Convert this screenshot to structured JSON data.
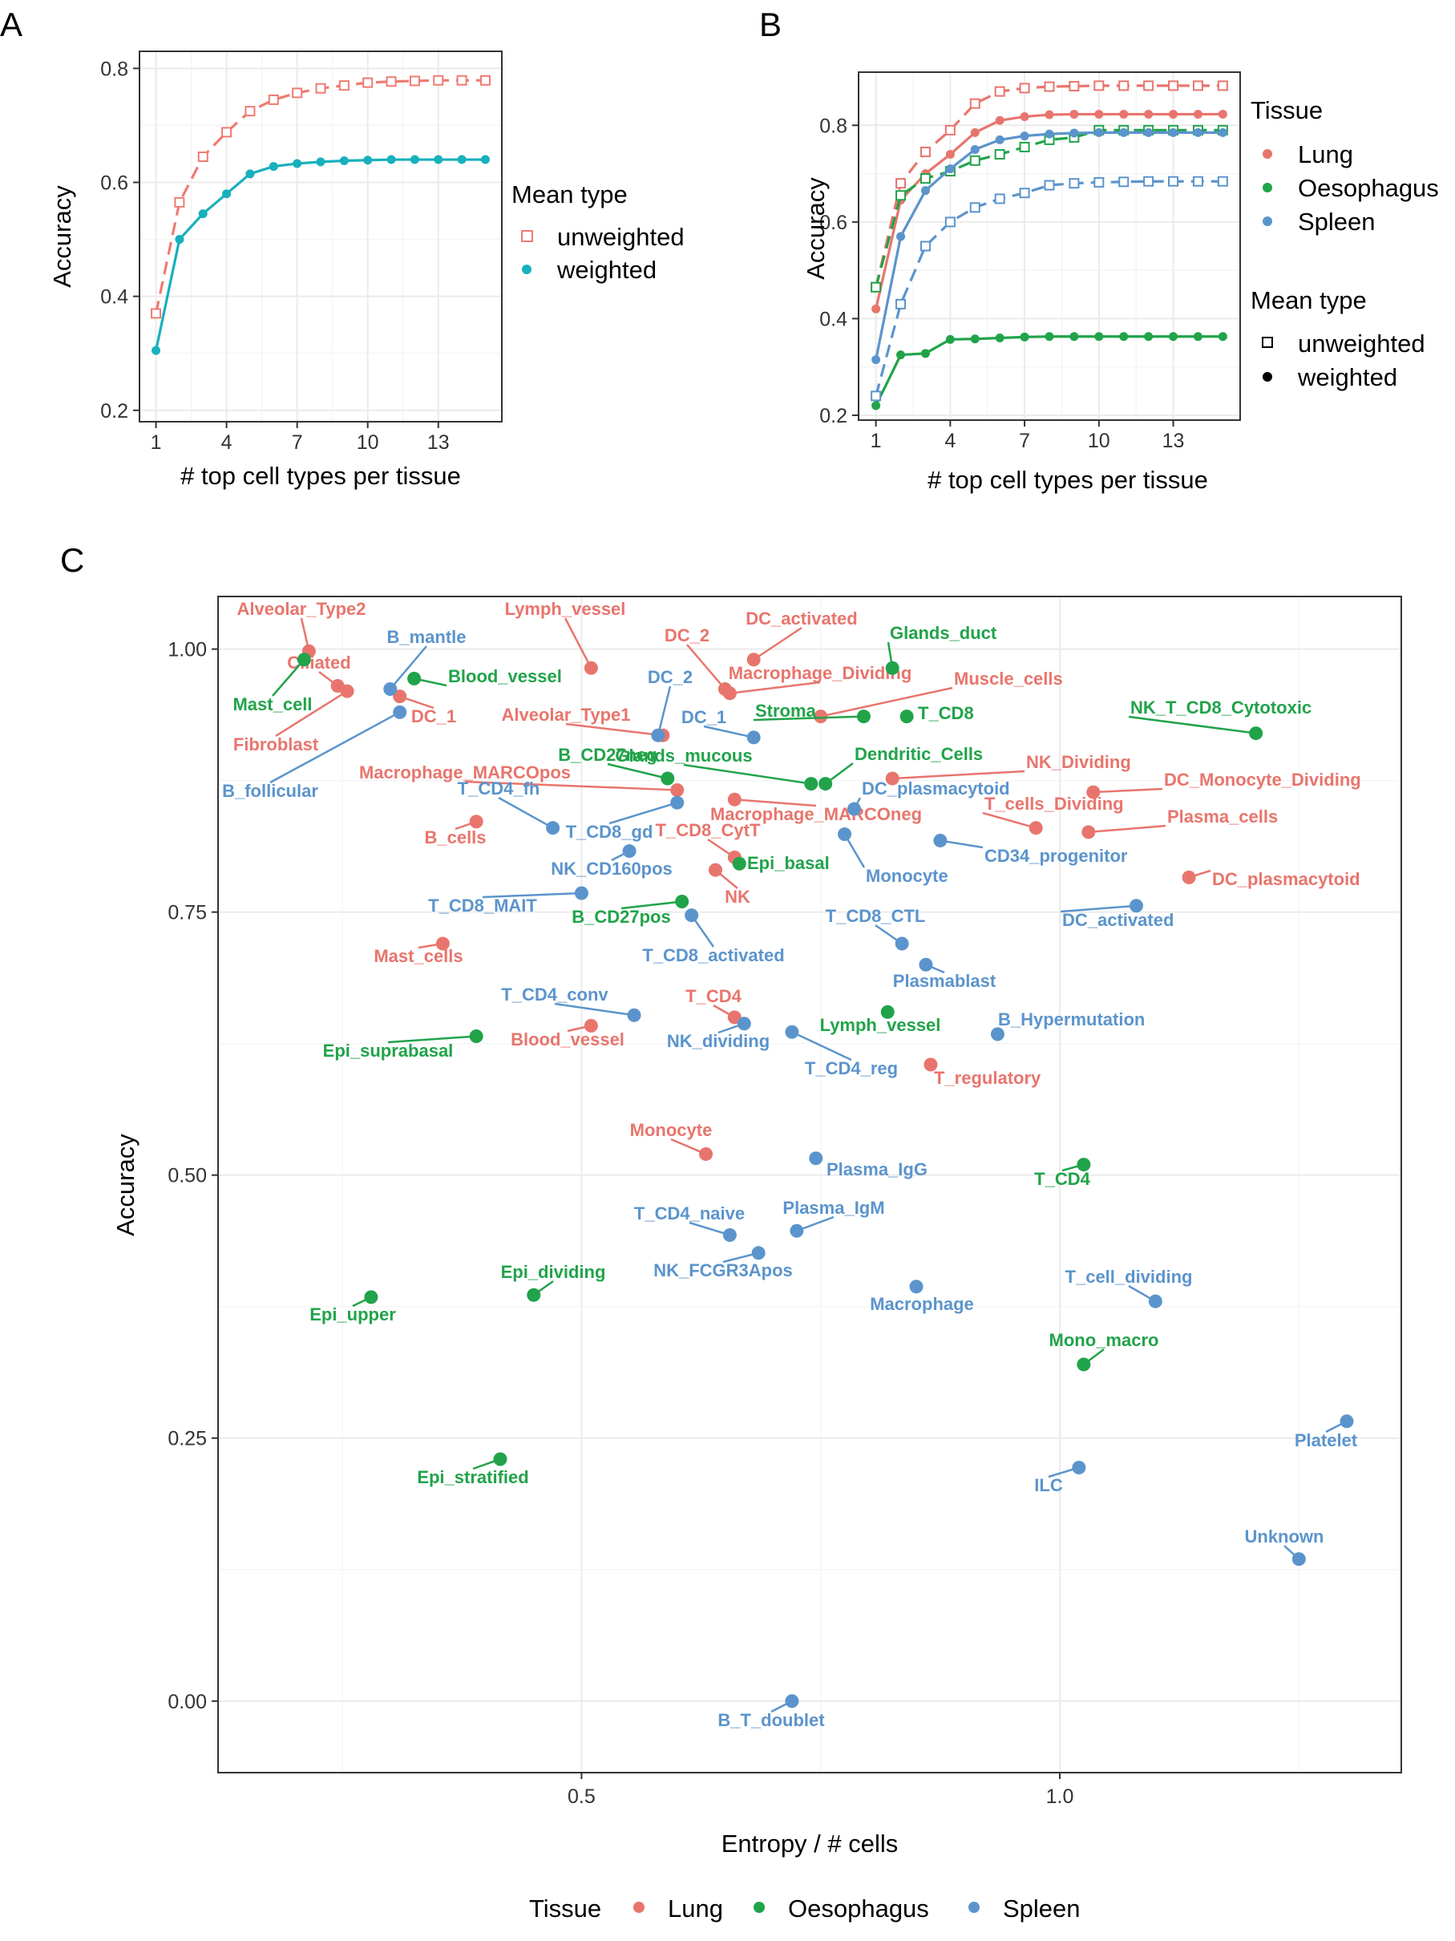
{
  "panels": [
    "A",
    "B",
    "C"
  ],
  "colors": {
    "Lung": "#e8756d",
    "Oesophagus": "#21a34a",
    "Spleen": "#5b94cc",
    "unweighted_A": "#ef7b72",
    "weighted_A": "#18b0bd"
  },
  "chart_data": [
    {
      "panel": "A",
      "type": "line",
      "xlabel": "# top cell types per tissue",
      "ylabel": "Accuracy",
      "xticks": [
        1,
        4,
        7,
        10,
        13
      ],
      "yticks": [
        "0.2",
        "0.4",
        "0.6",
        "0.8"
      ],
      "xlim": [
        0.3,
        15.7
      ],
      "ylim": [
        0.18,
        0.83
      ],
      "x": [
        1,
        2,
        3,
        4,
        5,
        6,
        7,
        8,
        9,
        10,
        11,
        12,
        13,
        14,
        15
      ],
      "legend_title": "Mean type",
      "legend_position": "right",
      "series": [
        {
          "name": "unweighted",
          "marker": "square-open",
          "dash": true,
          "values": [
            0.37,
            0.565,
            0.645,
            0.688,
            0.725,
            0.745,
            0.757,
            0.765,
            0.77,
            0.775,
            0.777,
            0.778,
            0.779,
            0.779,
            0.779
          ]
        },
        {
          "name": "weighted",
          "marker": "circle",
          "dash": false,
          "values": [
            0.305,
            0.5,
            0.545,
            0.58,
            0.615,
            0.628,
            0.633,
            0.636,
            0.638,
            0.639,
            0.64,
            0.64,
            0.64,
            0.64,
            0.64
          ]
        }
      ]
    },
    {
      "panel": "B",
      "type": "line",
      "xlabel": "# top cell types per tissue",
      "ylabel": "Accuracy",
      "xticks": [
        1,
        4,
        7,
        10,
        13
      ],
      "yticks": [
        "0.2",
        "0.4",
        "0.6",
        "0.8"
      ],
      "xlim": [
        0.3,
        15.7
      ],
      "ylim": [
        0.19,
        0.91
      ],
      "x": [
        1,
        2,
        3,
        4,
        5,
        6,
        7,
        8,
        9,
        10,
        11,
        12,
        13,
        14,
        15
      ],
      "legend_position": "right",
      "tissue_legend": {
        "title": "Tissue",
        "items": [
          "Lung",
          "Oesophagus",
          "Spleen"
        ]
      },
      "meantype_legend": {
        "title": "Mean type",
        "items": [
          "unweighted",
          "weighted"
        ]
      },
      "series": [
        {
          "tissue": "Lung",
          "type": "unweighted",
          "values": [
            0.465,
            0.68,
            0.745,
            0.79,
            0.845,
            0.87,
            0.877,
            0.88,
            0.881,
            0.882,
            0.882,
            0.882,
            0.882,
            0.882,
            0.882
          ]
        },
        {
          "tissue": "Lung",
          "type": "weighted",
          "values": [
            0.42,
            0.645,
            0.7,
            0.74,
            0.785,
            0.81,
            0.818,
            0.822,
            0.823,
            0.823,
            0.823,
            0.823,
            0.823,
            0.823,
            0.823
          ]
        },
        {
          "tissue": "Oesophagus",
          "type": "unweighted",
          "values": [
            0.465,
            0.655,
            0.69,
            0.705,
            0.727,
            0.74,
            0.755,
            0.77,
            0.775,
            0.79,
            0.79,
            0.79,
            0.79,
            0.79,
            0.79
          ]
        },
        {
          "tissue": "Oesophagus",
          "type": "weighted",
          "values": [
            0.22,
            0.325,
            0.328,
            0.357,
            0.358,
            0.36,
            0.362,
            0.363,
            0.363,
            0.363,
            0.363,
            0.363,
            0.363,
            0.363,
            0.363
          ]
        },
        {
          "tissue": "Spleen",
          "type": "unweighted",
          "values": [
            0.24,
            0.43,
            0.55,
            0.6,
            0.63,
            0.648,
            0.66,
            0.676,
            0.68,
            0.682,
            0.683,
            0.684,
            0.684,
            0.684,
            0.684
          ]
        },
        {
          "tissue": "Spleen",
          "type": "weighted",
          "values": [
            0.315,
            0.57,
            0.665,
            0.71,
            0.75,
            0.77,
            0.778,
            0.782,
            0.784,
            0.785,
            0.785,
            0.785,
            0.785,
            0.785,
            0.785
          ]
        }
      ]
    },
    {
      "panel": "C",
      "type": "scatter",
      "xlabel": "Entropy / # cells",
      "ylabel": "Accuracy",
      "xticks": [
        "0.5",
        "1.0"
      ],
      "yticks": [
        "0.00",
        "0.25",
        "0.50",
        "0.75",
        "1.00"
      ],
      "xlim": [
        0.12,
        1.357
      ],
      "ylim": [
        -0.068,
        1.05
      ],
      "legend": {
        "title": "Tissue",
        "items": [
          "Lung",
          "Oesophagus",
          "Spleen"
        ],
        "position": "bottom"
      },
      "points": [
        {
          "label": "Alveolar_Type2",
          "tissue": "Lung",
          "x": 0.215,
          "y": 0.998
        },
        {
          "label": "Ciliated",
          "tissue": "Lung",
          "x": 0.245,
          "y": 0.965
        },
        {
          "label": "Fibroblast",
          "tissue": "Lung",
          "x": 0.255,
          "y": 0.96
        },
        {
          "label": "DC_1",
          "tissue": "Lung",
          "x": 0.31,
          "y": 0.955
        },
        {
          "label": "Lymph_vessel",
          "tissue": "Lung",
          "x": 0.51,
          "y": 0.982
        },
        {
          "label": "DC_activated",
          "tissue": "Lung",
          "x": 0.68,
          "y": 0.99
        },
        {
          "label": "DC_2",
          "tissue": "Lung",
          "x": 0.65,
          "y": 0.962
        },
        {
          "label": "Macrophage_Dividing",
          "tissue": "Lung",
          "x": 0.655,
          "y": 0.958
        },
        {
          "label": "Muscle_cells",
          "tissue": "Lung",
          "x": 0.75,
          "y": 0.936
        },
        {
          "label": "Alveolar_Type1",
          "tissue": "Lung",
          "x": 0.585,
          "y": 0.918
        },
        {
          "label": "NK_Dividing",
          "tissue": "Lung",
          "x": 0.825,
          "y": 0.877
        },
        {
          "label": "Macrophage_MARCOpos",
          "tissue": "Lung",
          "x": 0.6,
          "y": 0.866
        },
        {
          "label": "DC_Monocyte_Dividing",
          "tissue": "Lung",
          "x": 1.035,
          "y": 0.864
        },
        {
          "label": "Macrophage_MARCOneg",
          "tissue": "Lung",
          "x": 0.66,
          "y": 0.857
        },
        {
          "label": "T_cells_Dividing",
          "tissue": "Lung",
          "x": 0.975,
          "y": 0.83
        },
        {
          "label": "Plasma_cells",
          "tissue": "Lung",
          "x": 1.03,
          "y": 0.826
        },
        {
          "label": "B_cells",
          "tissue": "Lung",
          "x": 0.39,
          "y": 0.836
        },
        {
          "label": "T_CD8_CytT",
          "tissue": "Lung",
          "x": 0.66,
          "y": 0.802
        },
        {
          "label": "NK",
          "tissue": "Lung",
          "x": 0.64,
          "y": 0.79
        },
        {
          "label": "DC_plasmacytoid",
          "tissue": "Lung",
          "x": 1.135,
          "y": 0.783
        },
        {
          "label": "Mast_cells",
          "tissue": "Lung",
          "x": 0.355,
          "y": 0.72
        },
        {
          "label": "T_CD4",
          "tissue": "Lung",
          "x": 0.66,
          "y": 0.65
        },
        {
          "label": "Blood_vessel",
          "tissue": "Lung",
          "x": 0.51,
          "y": 0.642
        },
        {
          "label": "T_regulatory",
          "tissue": "Lung",
          "x": 0.865,
          "y": 0.605
        },
        {
          "label": "Monocyte",
          "tissue": "Lung",
          "x": 0.63,
          "y": 0.52
        },
        {
          "label": "Mast_cell",
          "tissue": "Oesophagus",
          "x": 0.21,
          "y": 0.99
        },
        {
          "label": "Blood_vessel",
          "tissue": "Oesophagus",
          "x": 0.325,
          "y": 0.972
        },
        {
          "label": "Glands_duct",
          "tissue": "Oesophagus",
          "x": 0.825,
          "y": 0.982
        },
        {
          "label": "Stroma",
          "tissue": "Oesophagus",
          "x": 0.795,
          "y": 0.936
        },
        {
          "label": "T_CD8",
          "tissue": "Oesophagus",
          "x": 0.84,
          "y": 0.936
        },
        {
          "label": "NK_T_CD8_Cytotoxic",
          "tissue": "Oesophagus",
          "x": 1.205,
          "y": 0.92
        },
        {
          "label": "B_CD27neg",
          "tissue": "Oesophagus",
          "x": 0.59,
          "y": 0.877
        },
        {
          "label": "Glands_mucous",
          "tissue": "Oesophagus",
          "x": 0.74,
          "y": 0.872
        },
        {
          "label": "Dendritic_Cells",
          "tissue": "Oesophagus",
          "x": 0.755,
          "y": 0.872
        },
        {
          "label": "Epi_basal",
          "tissue": "Oesophagus",
          "x": 0.665,
          "y": 0.796
        },
        {
          "label": "B_CD27pos",
          "tissue": "Oesophagus",
          "x": 0.605,
          "y": 0.76
        },
        {
          "label": "Lymph_vessel",
          "tissue": "Oesophagus",
          "x": 0.82,
          "y": 0.655
        },
        {
          "label": "Epi_suprabasal",
          "tissue": "Oesophagus",
          "x": 0.39,
          "y": 0.632
        },
        {
          "label": "T_CD4",
          "tissue": "Oesophagus",
          "x": 1.025,
          "y": 0.51
        },
        {
          "label": "Epi_dividing",
          "tissue": "Oesophagus",
          "x": 0.45,
          "y": 0.386
        },
        {
          "label": "Epi_upper",
          "tissue": "Oesophagus",
          "x": 0.28,
          "y": 0.384
        },
        {
          "label": "Mono_macro",
          "tissue": "Oesophagus",
          "x": 1.025,
          "y": 0.32
        },
        {
          "label": "Epi_stratified",
          "tissue": "Oesophagus",
          "x": 0.415,
          "y": 0.23
        },
        {
          "label": "B_mantle",
          "tissue": "Spleen",
          "x": 0.3,
          "y": 0.962
        },
        {
          "label": "B_follicular",
          "tissue": "Spleen",
          "x": 0.31,
          "y": 0.94
        },
        {
          "label": "DC_2",
          "tissue": "Spleen",
          "x": 0.58,
          "y": 0.918
        },
        {
          "label": "DC_1",
          "tissue": "Spleen",
          "x": 0.68,
          "y": 0.916
        },
        {
          "label": "DC_plasmacytoid",
          "tissue": "Spleen",
          "x": 0.785,
          "y": 0.848
        },
        {
          "label": "T_CD8_gd",
          "tissue": "Spleen",
          "x": 0.6,
          "y": 0.854
        },
        {
          "label": "T_CD4_fh",
          "tissue": "Spleen",
          "x": 0.47,
          "y": 0.83
        },
        {
          "label": "Monocyte",
          "tissue": "Spleen",
          "x": 0.775,
          "y": 0.824
        },
        {
          "label": "NK_CD160pos",
          "tissue": "Spleen",
          "x": 0.55,
          "y": 0.808
        },
        {
          "label": "CD34_progenitor",
          "tissue": "Spleen",
          "x": 0.875,
          "y": 0.818
        },
        {
          "label": "T_CD8_MAIT",
          "tissue": "Spleen",
          "x": 0.5,
          "y": 0.768
        },
        {
          "label": "T_CD8_activated",
          "tissue": "Spleen",
          "x": 0.615,
          "y": 0.747
        },
        {
          "label": "DC_activated",
          "tissue": "Spleen",
          "x": 1.08,
          "y": 0.756
        },
        {
          "label": "T_CD8_CTL",
          "tissue": "Spleen",
          "x": 0.835,
          "y": 0.72
        },
        {
          "label": "Plasmablast",
          "tissue": "Spleen",
          "x": 0.86,
          "y": 0.7
        },
        {
          "label": "T_CD4_conv",
          "tissue": "Spleen",
          "x": 0.555,
          "y": 0.652
        },
        {
          "label": "NK_dividing",
          "tissue": "Spleen",
          "x": 0.67,
          "y": 0.644
        },
        {
          "label": "T_CD4_reg",
          "tissue": "Spleen",
          "x": 0.72,
          "y": 0.636
        },
        {
          "label": "B_Hypermutation",
          "tissue": "Spleen",
          "x": 0.935,
          "y": 0.634
        },
        {
          "label": "Plasma_IgG",
          "tissue": "Spleen",
          "x": 0.745,
          "y": 0.516
        },
        {
          "label": "Plasma_IgM",
          "tissue": "Spleen",
          "x": 0.725,
          "y": 0.447
        },
        {
          "label": "T_CD4_naive",
          "tissue": "Spleen",
          "x": 0.655,
          "y": 0.443
        },
        {
          "label": "NK_FCGR3Apos",
          "tissue": "Spleen",
          "x": 0.685,
          "y": 0.426
        },
        {
          "label": "Macrophage",
          "tissue": "Spleen",
          "x": 0.85,
          "y": 0.394
        },
        {
          "label": "T_cell_dividing",
          "tissue": "Spleen",
          "x": 1.1,
          "y": 0.38
        },
        {
          "label": "ILC",
          "tissue": "Spleen",
          "x": 1.02,
          "y": 0.222
        },
        {
          "label": "Platelet",
          "tissue": "Spleen",
          "x": 1.3,
          "y": 0.266
        },
        {
          "label": "Unknown",
          "tissue": "Spleen",
          "x": 1.25,
          "y": 0.135
        },
        {
          "label": "B_T_doublet",
          "tissue": "Spleen",
          "x": 0.72,
          "y": 0.0
        }
      ]
    }
  ]
}
